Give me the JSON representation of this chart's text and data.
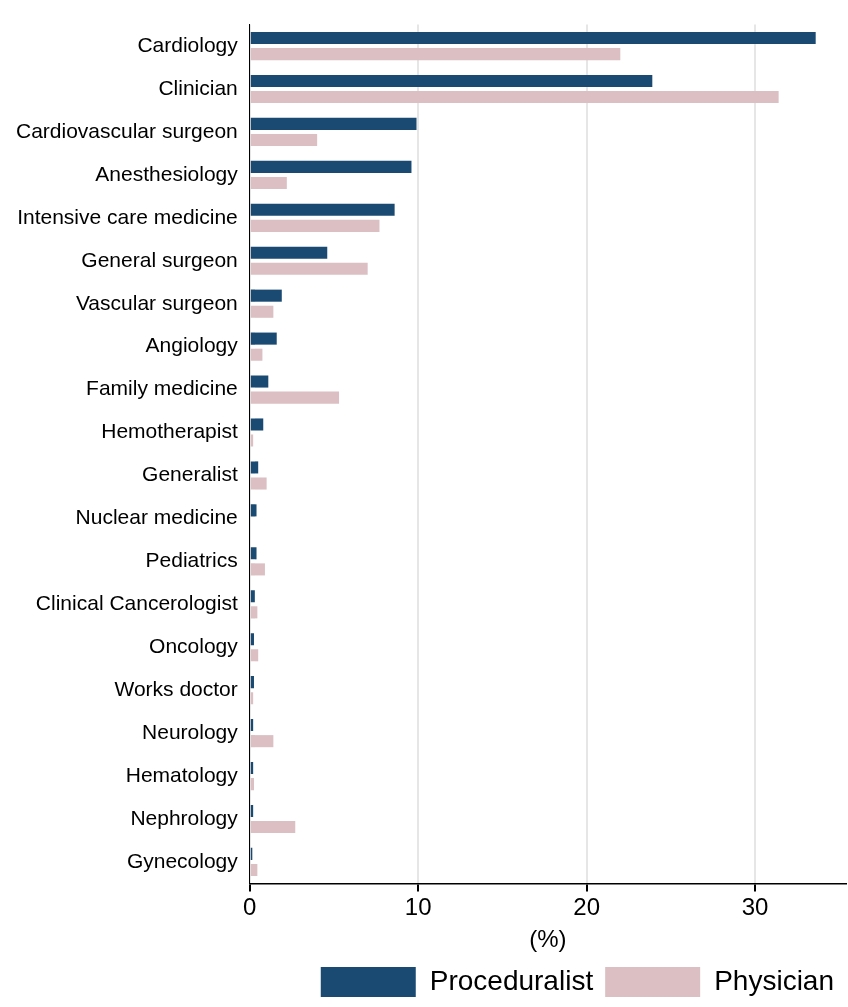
{
  "chart_data": {
    "type": "bar",
    "orientation": "horizontal",
    "xlabel": "(%)",
    "categories": [
      "Cardiology",
      "Clinician",
      "Cardiovascular surgeon",
      "Anesthesiology",
      "Intensive care medicine",
      "General surgeon",
      "Vascular surgeon",
      "Angiology",
      "Family medicine",
      "Hemotherapist",
      "Generalist",
      "Nuclear medicine",
      "Pediatrics",
      "Clinical Cancerologist",
      "Oncology",
      "Works doctor",
      "Neurology",
      "Hematology",
      "Nephrology",
      "Gynecology"
    ],
    "series": [
      {
        "name": "Proceduralist",
        "color": "#1a4a72",
        "values": [
          33.6,
          23.9,
          9.9,
          9.6,
          8.6,
          4.6,
          1.9,
          1.6,
          1.1,
          0.8,
          0.5,
          0.4,
          0.4,
          0.3,
          0.25,
          0.25,
          0.2,
          0.2,
          0.2,
          0.15
        ]
      },
      {
        "name": "Physician",
        "color": "#dbbfc2",
        "values": [
          22.0,
          31.4,
          4.0,
          2.2,
          7.7,
          7.0,
          1.4,
          0.75,
          5.3,
          0.2,
          1.0,
          null,
          0.9,
          0.45,
          0.5,
          0.2,
          1.4,
          0.25,
          2.7,
          0.45
        ]
      }
    ],
    "xlim": [
      0,
      35.4
    ],
    "xticks": [
      0,
      10,
      20,
      30
    ],
    "grid": "x",
    "legend": "bottom"
  }
}
